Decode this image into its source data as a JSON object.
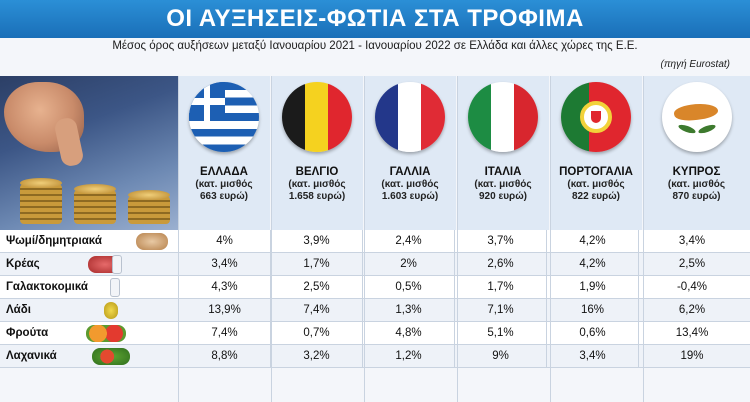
{
  "title": "ΟΙ ΑΥΞΗΣΕΙΣ-ΦΩΤΙΑ ΣΤΑ ΤΡΟΦΙΜΑ",
  "subtitle": "Μέσος όρος αυξήσεων μεταξύ Ιανουαρίου 2021 - Ιανουαρίου 2022 σε Ελλάδα και άλλες χώρες της Ε.Ε.",
  "source": "(πηγή Eurostat)",
  "countries": [
    {
      "name": "ΕΛΛΑΔΑ",
      "sub1": "(κατ. μισθός",
      "sub2": "663 ευρώ)",
      "flag": "greece-flag-icon"
    },
    {
      "name": "ΒΕΛΓΙΟ",
      "sub1": "(κατ. μισθός",
      "sub2": "1.658 ευρώ)",
      "flag": "belgium-flag-icon"
    },
    {
      "name": "ΓΑΛΛΙΑ",
      "sub1": "(κατ. μισθός",
      "sub2": "1.603 ευρώ)",
      "flag": "france-flag-icon"
    },
    {
      "name": "ΙΤΑΛΙΑ",
      "sub1": "(κατ. μισθός",
      "sub2": "920 ευρώ)",
      "flag": "italy-flag-icon"
    },
    {
      "name": "ΠΟΡΤΟΓΑΛΙΑ",
      "sub1": "(κατ. μισθός",
      "sub2": "822 ευρώ)",
      "flag": "portugal-flag-icon"
    },
    {
      "name": "ΚΥΠΡΟΣ",
      "sub1": "(κατ. μισθός",
      "sub2": "870 ευρώ)",
      "flag": "cyprus-flag-icon"
    }
  ],
  "rows": [
    {
      "label": "Ψωμί/δημητριακά",
      "icon": "bread-icon",
      "values": [
        "4%",
        "3,9%",
        "2,4%",
        "3,7%",
        "4,2%",
        "3,4%"
      ]
    },
    {
      "label": "Κρέας",
      "icon": "meat-icon",
      "values": [
        "3,4%",
        "1,7%",
        "2%",
        "2,6%",
        "4,2%",
        "2,5%"
      ]
    },
    {
      "label": "Γαλακτοκομικά",
      "icon": "milk-icon",
      "values": [
        "4,3%",
        "2,5%",
        "0,5%",
        "1,7%",
        "1,9%",
        "-0,4%"
      ]
    },
    {
      "label": "Λάδι",
      "icon": "oil-icon",
      "values": [
        "13,9%",
        "7,4%",
        "1,3%",
        "7,1%",
        "16%",
        "6,2%"
      ]
    },
    {
      "label": "Φρούτα",
      "icon": "fruit-icon",
      "values": [
        "7,4%",
        "0,7%",
        "4,8%",
        "5,1%",
        "0,6%",
        "13,4%"
      ]
    },
    {
      "label": "Λαχανικά",
      "icon": "vegetables-icon",
      "values": [
        "8,8%",
        "3,2%",
        "1,2%",
        "9%",
        "3,4%",
        "19%"
      ]
    }
  ]
}
